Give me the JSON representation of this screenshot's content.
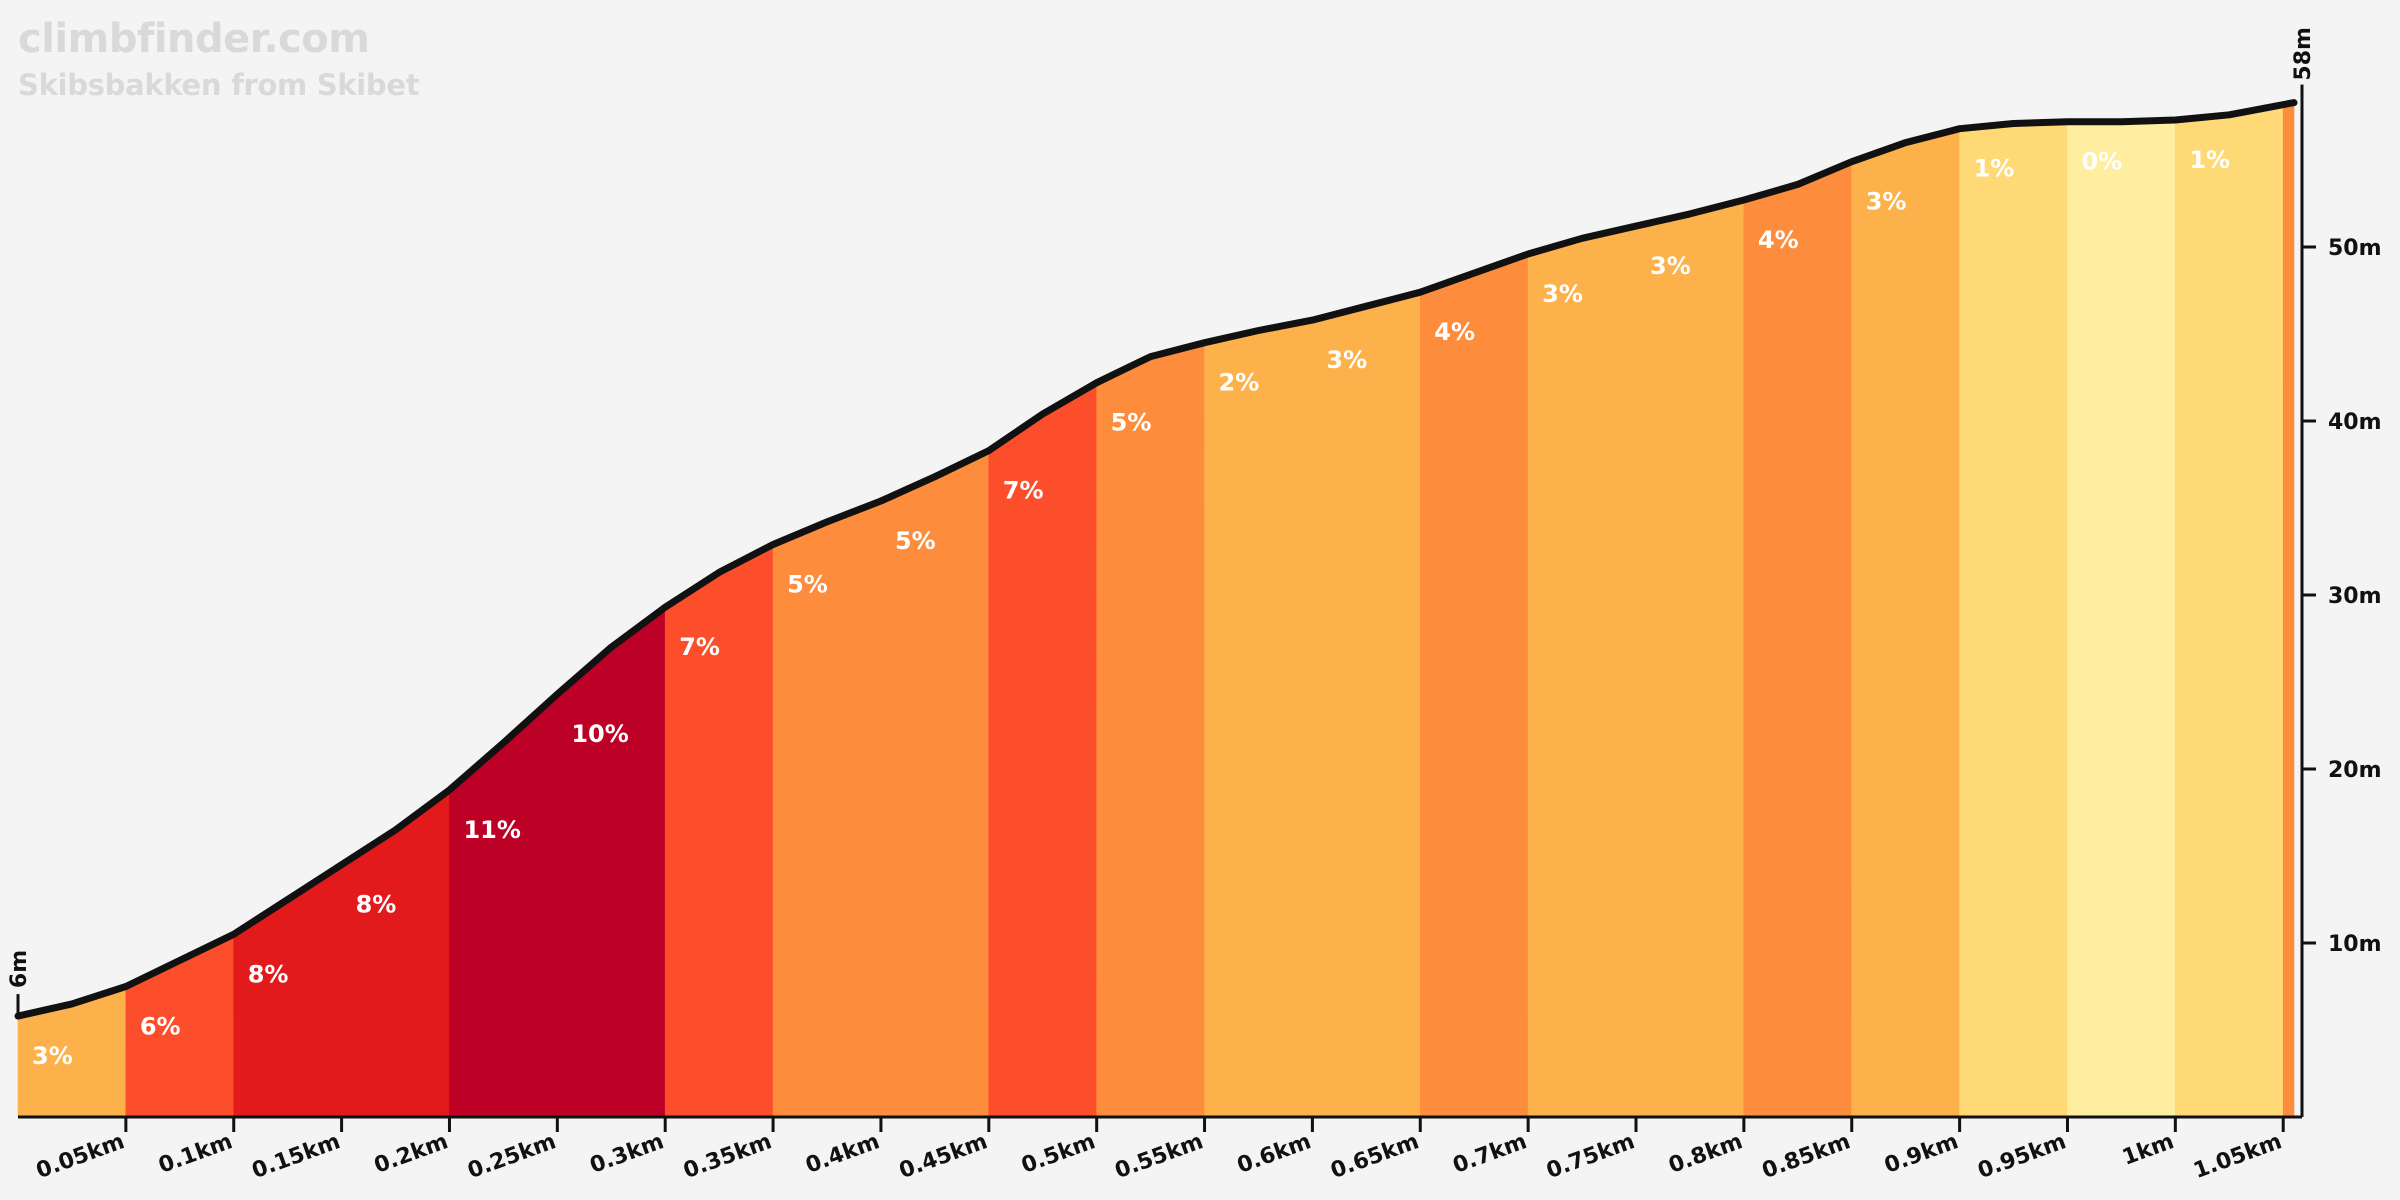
{
  "header": {
    "brand": "climbfinder.com",
    "subtitle": "Skibsbakken from Skibet"
  },
  "chart_data": {
    "type": "area",
    "title": "Skibsbakken from Skibet",
    "xlim_km": [
      0,
      1.055
    ],
    "ylim_m": [
      0,
      58
    ],
    "start_label": "6m",
    "end_label": "58m",
    "x_ticks": [
      {
        "km": 0.05,
        "label": "0.05km"
      },
      {
        "km": 0.1,
        "label": "0.1km"
      },
      {
        "km": 0.15,
        "label": "0.15km"
      },
      {
        "km": 0.2,
        "label": "0.2km"
      },
      {
        "km": 0.25,
        "label": "0.25km"
      },
      {
        "km": 0.3,
        "label": "0.3km"
      },
      {
        "km": 0.35,
        "label": "0.35km"
      },
      {
        "km": 0.4,
        "label": "0.4km"
      },
      {
        "km": 0.45,
        "label": "0.45km"
      },
      {
        "km": 0.5,
        "label": "0.5km"
      },
      {
        "km": 0.55,
        "label": "0.55km"
      },
      {
        "km": 0.6,
        "label": "0.6km"
      },
      {
        "km": 0.65,
        "label": "0.65km"
      },
      {
        "km": 0.7,
        "label": "0.7km"
      },
      {
        "km": 0.75,
        "label": "0.75km"
      },
      {
        "km": 0.8,
        "label": "0.8km"
      },
      {
        "km": 0.85,
        "label": "0.85km"
      },
      {
        "km": 0.9,
        "label": "0.9km"
      },
      {
        "km": 0.95,
        "label": "0.95km"
      },
      {
        "km": 1.0,
        "label": "1km"
      },
      {
        "km": 1.05,
        "label": "1.05km"
      }
    ],
    "y_ticks": [
      {
        "m": 10,
        "label": "10m"
      },
      {
        "m": 20,
        "label": "20m"
      },
      {
        "m": 30,
        "label": "30m"
      },
      {
        "m": 40,
        "label": "40m"
      },
      {
        "m": 50,
        "label": "50m"
      }
    ],
    "segments": [
      {
        "from_km": 0.0,
        "to_km": 0.05,
        "grade": "3%",
        "color": "#fdb14b"
      },
      {
        "from_km": 0.05,
        "to_km": 0.1,
        "grade": "6%",
        "color": "#fc4e2a"
      },
      {
        "from_km": 0.1,
        "to_km": 0.15,
        "grade": "8%",
        "color": "#e31a1c"
      },
      {
        "from_km": 0.15,
        "to_km": 0.2,
        "grade": "8%",
        "color": "#e31a1c"
      },
      {
        "from_km": 0.2,
        "to_km": 0.25,
        "grade": "11%",
        "color": "#bd0026"
      },
      {
        "from_km": 0.25,
        "to_km": 0.3,
        "grade": "10%",
        "color": "#bd0026"
      },
      {
        "from_km": 0.3,
        "to_km": 0.35,
        "grade": "7%",
        "color": "#fc4e2a"
      },
      {
        "from_km": 0.35,
        "to_km": 0.4,
        "grade": "5%",
        "color": "#fd8d3c"
      },
      {
        "from_km": 0.4,
        "to_km": 0.45,
        "grade": "5%",
        "color": "#fd8d3c"
      },
      {
        "from_km": 0.45,
        "to_km": 0.5,
        "grade": "7%",
        "color": "#fc4e2a"
      },
      {
        "from_km": 0.5,
        "to_km": 0.55,
        "grade": "5%",
        "color": "#fd8d3c"
      },
      {
        "from_km": 0.55,
        "to_km": 0.6,
        "grade": "2%",
        "color": "#fdb14b"
      },
      {
        "from_km": 0.6,
        "to_km": 0.65,
        "grade": "3%",
        "color": "#fdb14b"
      },
      {
        "from_km": 0.65,
        "to_km": 0.7,
        "grade": "4%",
        "color": "#fd8d3c"
      },
      {
        "from_km": 0.7,
        "to_km": 0.75,
        "grade": "3%",
        "color": "#fdb14b"
      },
      {
        "from_km": 0.75,
        "to_km": 0.8,
        "grade": "3%",
        "color": "#fdb14b"
      },
      {
        "from_km": 0.8,
        "to_km": 0.85,
        "grade": "4%",
        "color": "#fd8d3c"
      },
      {
        "from_km": 0.85,
        "to_km": 0.9,
        "grade": "3%",
        "color": "#fdb14b"
      },
      {
        "from_km": 0.9,
        "to_km": 0.95,
        "grade": "1%",
        "color": "#fed976"
      },
      {
        "from_km": 0.95,
        "to_km": 1.0,
        "grade": "0%",
        "color": "#ffeda0"
      },
      {
        "from_km": 1.0,
        "to_km": 1.05,
        "grade": "1%",
        "color": "#fed976"
      },
      {
        "from_km": 1.05,
        "to_km": 1.055,
        "grade": "",
        "color": "#fd8d3c"
      }
    ],
    "profile": [
      [
        0.0,
        5.8
      ],
      [
        0.025,
        6.5
      ],
      [
        0.05,
        7.5
      ],
      [
        0.075,
        9.0
      ],
      [
        0.1,
        10.5
      ],
      [
        0.125,
        12.5
      ],
      [
        0.15,
        14.5
      ],
      [
        0.175,
        16.5
      ],
      [
        0.2,
        18.8
      ],
      [
        0.225,
        21.5
      ],
      [
        0.25,
        24.3
      ],
      [
        0.275,
        27.0
      ],
      [
        0.3,
        29.3
      ],
      [
        0.325,
        31.3
      ],
      [
        0.35,
        32.9
      ],
      [
        0.375,
        34.2
      ],
      [
        0.4,
        35.4
      ],
      [
        0.425,
        36.8
      ],
      [
        0.45,
        38.3
      ],
      [
        0.475,
        40.4
      ],
      [
        0.5,
        42.2
      ],
      [
        0.525,
        43.7
      ],
      [
        0.55,
        44.5
      ],
      [
        0.575,
        45.2
      ],
      [
        0.6,
        45.8
      ],
      [
        0.625,
        46.6
      ],
      [
        0.65,
        47.4
      ],
      [
        0.675,
        48.5
      ],
      [
        0.7,
        49.6
      ],
      [
        0.725,
        50.5
      ],
      [
        0.75,
        51.2
      ],
      [
        0.775,
        51.9
      ],
      [
        0.8,
        52.7
      ],
      [
        0.825,
        53.6
      ],
      [
        0.85,
        54.9
      ],
      [
        0.875,
        56.0
      ],
      [
        0.9,
        56.8
      ],
      [
        0.925,
        57.1
      ],
      [
        0.95,
        57.2
      ],
      [
        0.975,
        57.2
      ],
      [
        1.0,
        57.3
      ],
      [
        1.025,
        57.6
      ],
      [
        1.055,
        58.3
      ]
    ]
  }
}
